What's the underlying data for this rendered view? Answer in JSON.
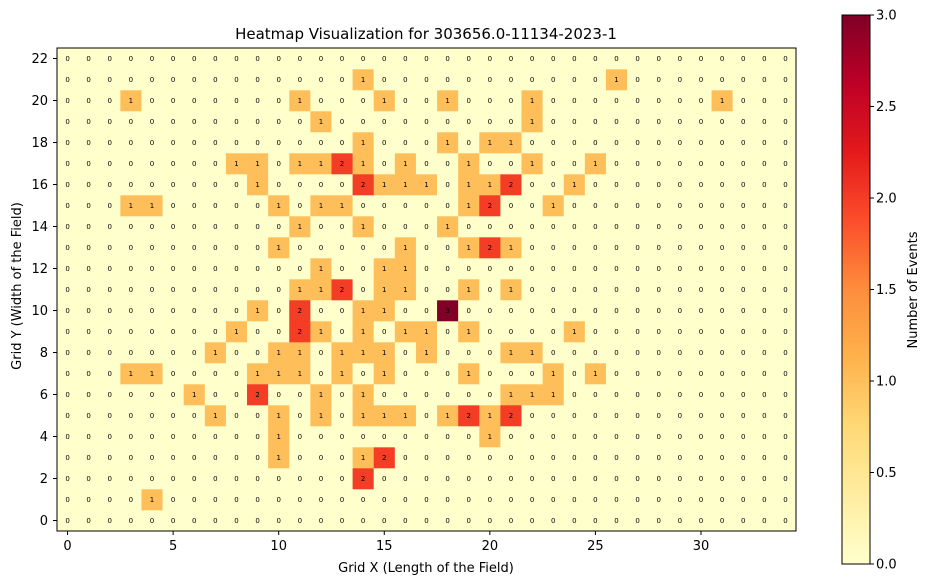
{
  "chart_data": {
    "type": "heatmap",
    "title": "Heatmap Visualization for 303656.0-11134-2023-1",
    "xlabel": "Grid X (Length of the Field)",
    "ylabel": "Grid Y (Width of the Field)",
    "colorbar_label": "Number of Events",
    "x_ticks": [
      "0",
      "5",
      "10",
      "15",
      "20",
      "25",
      "30"
    ],
    "y_ticks": [
      "0",
      "2",
      "4",
      "6",
      "8",
      "10",
      "12",
      "14",
      "16",
      "18",
      "20",
      "22"
    ],
    "colorbar_ticks": [
      "0.0",
      "0.5",
      "1.0",
      "1.5",
      "2.0",
      "2.5",
      "3.0"
    ],
    "vmin": 0,
    "vmax": 3,
    "colormap": [
      "#ffffcc",
      "#ffeda0",
      "#fed976",
      "#feb24c",
      "#fd8d3c",
      "#fc4e2a",
      "#e31a1c",
      "#bd0026",
      "#800026"
    ],
    "x_cells": 35,
    "y_cells": 23,
    "values": [
      [
        0,
        0,
        0,
        0,
        0,
        0,
        0,
        0,
        0,
        0,
        0,
        0,
        0,
        0,
        0,
        0,
        0,
        0,
        0,
        0,
        0,
        0,
        0,
        0,
        0,
        0,
        0,
        0,
        0,
        0,
        0,
        0,
        0,
        0,
        0
      ],
      [
        0,
        0,
        0,
        0,
        1,
        0,
        0,
        0,
        0,
        0,
        0,
        0,
        0,
        0,
        0,
        0,
        0,
        0,
        0,
        0,
        0,
        0,
        0,
        0,
        0,
        0,
        0,
        0,
        0,
        0,
        0,
        0,
        0,
        0,
        0
      ],
      [
        0,
        0,
        0,
        0,
        0,
        0,
        0,
        0,
        0,
        0,
        0,
        0,
        0,
        0,
        2,
        0,
        0,
        0,
        0,
        0,
        0,
        0,
        0,
        0,
        0,
        0,
        0,
        0,
        0,
        0,
        0,
        0,
        0,
        0,
        0
      ],
      [
        0,
        0,
        0,
        0,
        0,
        0,
        0,
        0,
        0,
        0,
        1,
        0,
        0,
        0,
        1,
        2,
        0,
        0,
        0,
        0,
        0,
        0,
        0,
        0,
        0,
        0,
        0,
        0,
        0,
        0,
        0,
        0,
        0,
        0,
        0
      ],
      [
        0,
        0,
        0,
        0,
        0,
        0,
        0,
        0,
        0,
        0,
        1,
        0,
        0,
        0,
        0,
        0,
        0,
        0,
        0,
        0,
        1,
        0,
        0,
        0,
        0,
        0,
        0,
        0,
        0,
        0,
        0,
        0,
        0,
        0,
        0
      ],
      [
        0,
        0,
        0,
        0,
        0,
        0,
        0,
        1,
        0,
        0,
        1,
        0,
        1,
        0,
        1,
        1,
        1,
        0,
        1,
        2,
        1,
        2,
        0,
        0,
        0,
        0,
        0,
        0,
        0,
        0,
        0,
        0,
        0,
        0,
        0
      ],
      [
        0,
        0,
        0,
        0,
        0,
        0,
        1,
        0,
        0,
        2,
        0,
        0,
        1,
        0,
        1,
        0,
        0,
        0,
        0,
        0,
        0,
        1,
        1,
        1,
        0,
        0,
        0,
        0,
        0,
        0,
        0,
        0,
        0,
        0,
        0
      ],
      [
        0,
        0,
        0,
        1,
        1,
        0,
        0,
        0,
        0,
        1,
        1,
        1,
        0,
        1,
        0,
        1,
        0,
        0,
        0,
        1,
        0,
        0,
        0,
        1,
        0,
        1,
        0,
        0,
        0,
        0,
        0,
        0,
        0,
        0,
        0
      ],
      [
        0,
        0,
        0,
        0,
        0,
        0,
        0,
        1,
        0,
        0,
        1,
        1,
        0,
        1,
        1,
        1,
        0,
        1,
        0,
        0,
        0,
        1,
        1,
        0,
        0,
        0,
        0,
        0,
        0,
        0,
        0,
        0,
        0,
        0,
        0
      ],
      [
        0,
        0,
        0,
        0,
        0,
        0,
        0,
        0,
        1,
        0,
        0,
        2,
        1,
        0,
        1,
        0,
        1,
        1,
        0,
        1,
        0,
        0,
        0,
        0,
        1,
        0,
        0,
        0,
        0,
        0,
        0,
        0,
        0,
        0,
        0
      ],
      [
        0,
        0,
        0,
        0,
        0,
        0,
        0,
        0,
        0,
        1,
        0,
        2,
        0,
        0,
        1,
        1,
        0,
        0,
        3,
        0,
        0,
        0,
        0,
        0,
        0,
        0,
        0,
        0,
        0,
        0,
        0,
        0,
        0,
        0,
        0
      ],
      [
        0,
        0,
        0,
        0,
        0,
        0,
        0,
        0,
        0,
        0,
        0,
        1,
        1,
        2,
        0,
        1,
        1,
        0,
        0,
        1,
        0,
        1,
        0,
        0,
        0,
        0,
        0,
        0,
        0,
        0,
        0,
        0,
        0,
        0,
        0
      ],
      [
        0,
        0,
        0,
        0,
        0,
        0,
        0,
        0,
        0,
        0,
        0,
        0,
        1,
        0,
        0,
        1,
        1,
        0,
        0,
        0,
        0,
        0,
        0,
        0,
        0,
        0,
        0,
        0,
        0,
        0,
        0,
        0,
        0,
        0,
        0
      ],
      [
        0,
        0,
        0,
        0,
        0,
        0,
        0,
        0,
        0,
        0,
        1,
        0,
        0,
        0,
        0,
        0,
        1,
        0,
        0,
        1,
        2,
        1,
        0,
        0,
        0,
        0,
        0,
        0,
        0,
        0,
        0,
        0,
        0,
        0,
        0
      ],
      [
        0,
        0,
        0,
        0,
        0,
        0,
        0,
        0,
        0,
        0,
        0,
        1,
        0,
        0,
        1,
        0,
        0,
        0,
        1,
        0,
        0,
        0,
        0,
        0,
        0,
        0,
        0,
        0,
        0,
        0,
        0,
        0,
        0,
        0,
        0
      ],
      [
        0,
        0,
        0,
        1,
        1,
        0,
        0,
        0,
        0,
        0,
        1,
        0,
        1,
        1,
        0,
        0,
        0,
        0,
        0,
        1,
        2,
        0,
        0,
        1,
        0,
        0,
        0,
        0,
        0,
        0,
        0,
        0,
        0,
        0,
        0
      ],
      [
        0,
        0,
        0,
        0,
        0,
        0,
        0,
        0,
        0,
        1,
        0,
        0,
        0,
        0,
        2,
        1,
        1,
        1,
        0,
        1,
        1,
        2,
        0,
        0,
        1,
        0,
        0,
        0,
        0,
        0,
        0,
        0,
        0,
        0,
        0
      ],
      [
        0,
        0,
        0,
        0,
        0,
        0,
        0,
        0,
        1,
        1,
        0,
        1,
        1,
        2,
        1,
        0,
        1,
        0,
        0,
        1,
        0,
        0,
        1,
        0,
        0,
        1,
        0,
        0,
        0,
        0,
        0,
        0,
        0,
        0,
        0
      ],
      [
        0,
        0,
        0,
        0,
        0,
        0,
        0,
        0,
        0,
        0,
        0,
        0,
        0,
        0,
        1,
        0,
        0,
        0,
        1,
        0,
        1,
        1,
        0,
        0,
        0,
        0,
        0,
        0,
        0,
        0,
        0,
        0,
        0,
        0,
        0
      ],
      [
        0,
        0,
        0,
        0,
        0,
        0,
        0,
        0,
        0,
        0,
        0,
        0,
        1,
        0,
        0,
        0,
        0,
        0,
        0,
        0,
        0,
        0,
        1,
        0,
        0,
        0,
        0,
        0,
        0,
        0,
        0,
        0,
        0,
        0,
        0
      ],
      [
        0,
        0,
        0,
        1,
        0,
        0,
        0,
        0,
        0,
        0,
        0,
        1,
        0,
        0,
        0,
        1,
        0,
        0,
        1,
        0,
        0,
        0,
        1,
        0,
        0,
        0,
        0,
        0,
        0,
        0,
        0,
        1,
        0,
        0,
        0
      ],
      [
        0,
        0,
        0,
        0,
        0,
        0,
        0,
        0,
        0,
        0,
        0,
        0,
        0,
        0,
        1,
        0,
        0,
        0,
        0,
        0,
        0,
        0,
        0,
        0,
        0,
        0,
        1,
        0,
        0,
        0,
        0,
        0,
        0,
        0,
        0
      ],
      [
        0,
        0,
        0,
        0,
        0,
        0,
        0,
        0,
        0,
        0,
        0,
        0,
        0,
        0,
        0,
        0,
        0,
        0,
        0,
        0,
        0,
        0,
        0,
        0,
        0,
        0,
        0,
        0,
        0,
        0,
        0,
        0,
        0,
        0,
        0
      ]
    ]
  }
}
